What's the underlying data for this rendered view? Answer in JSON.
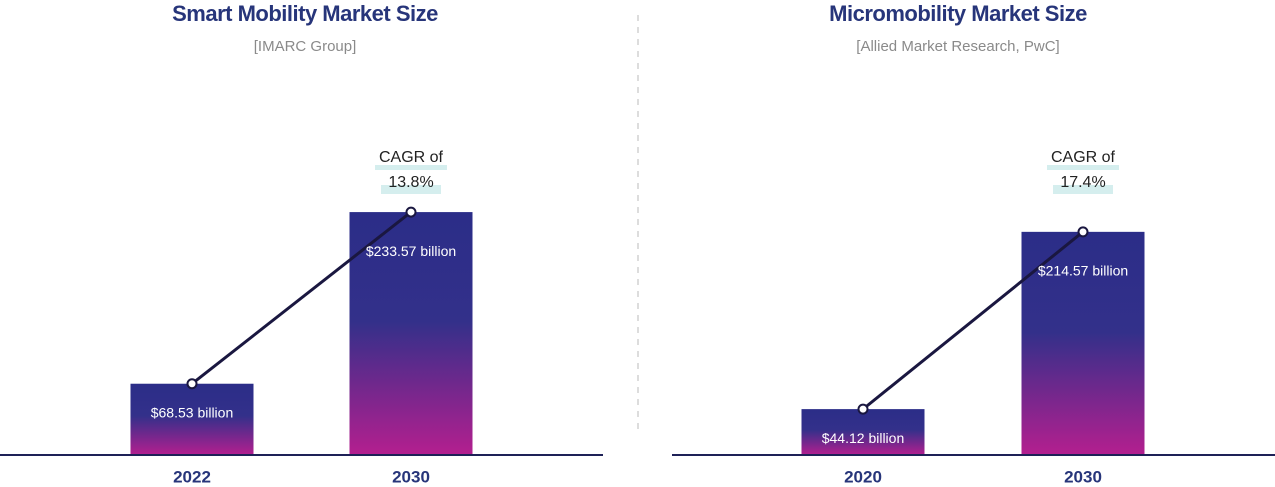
{
  "chart_data": [
    {
      "type": "bar",
      "title": "Smart Mobility Market Size",
      "subtitle": "[IMARC Group]",
      "categories": [
        "2022",
        "2030"
      ],
      "values": [
        68.53,
        233.57
      ],
      "value_labels": [
        "$68.53 billion",
        "$233.57 billion"
      ],
      "annotation": [
        "CAGR of",
        "13.8%"
      ],
      "ylim": [
        0,
        250
      ]
    },
    {
      "type": "bar",
      "title": "Micromobility Market Size",
      "subtitle": "[Allied Market Research, PwC]",
      "categories": [
        "2020",
        "2030"
      ],
      "values": [
        44.12,
        214.57
      ],
      "value_labels": [
        "$44.12 billion",
        "$214.57 billion"
      ],
      "annotation": [
        "CAGR of",
        "17.4%"
      ],
      "ylim": [
        0,
        250
      ]
    }
  ]
}
